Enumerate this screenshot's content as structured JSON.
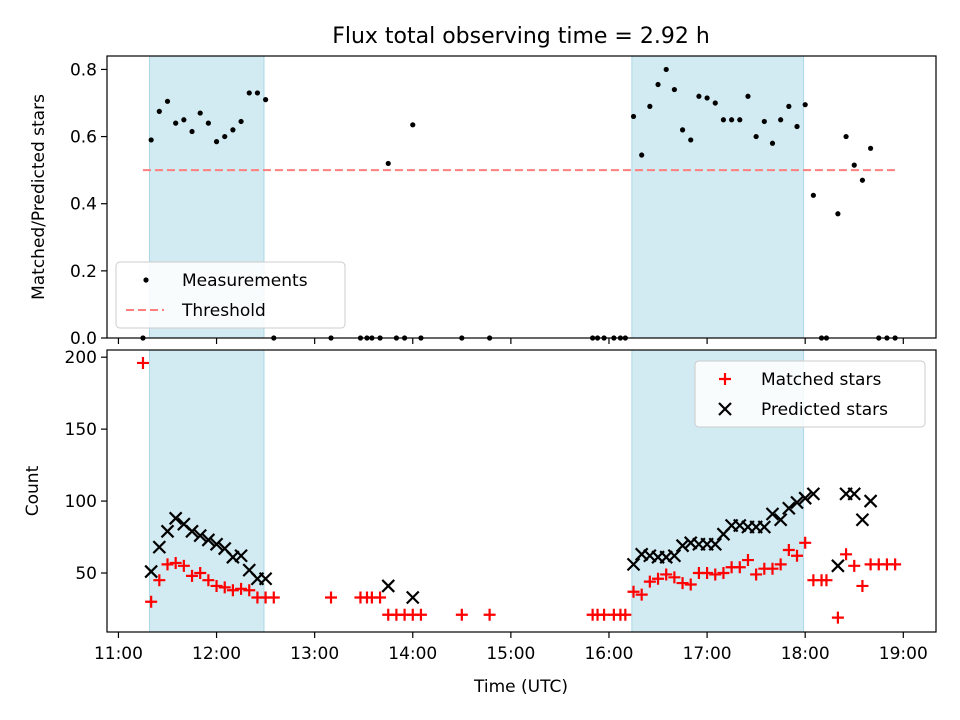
{
  "chart_data": {
    "type": "scatter",
    "title": "Flux total observing time = 2.92 h",
    "xlabel": "Time (UTC)",
    "x_ticks": [
      "11:00",
      "12:00",
      "13:00",
      "14:00",
      "15:00",
      "16:00",
      "17:00",
      "18:00",
      "19:00"
    ],
    "xlim": [
      "10:53",
      "19:20"
    ],
    "colors": {
      "measurement": "#000000",
      "threshold": "#ff7f7f",
      "matched": "#ff0000",
      "predicted": "#000000",
      "span": "#add8e6"
    },
    "observing_spans": [
      {
        "start": "11:19",
        "end": "12:29"
      },
      {
        "start": "16:14",
        "end": "17:59"
      }
    ],
    "panels": [
      {
        "ylabel": "Matched/Predicted stars",
        "ylim": [
          0,
          0.84
        ],
        "yticks": [
          "0.0",
          "0.2",
          "0.4",
          "0.6",
          "0.8"
        ],
        "legend_position": "lower-left",
        "series": [
          {
            "name": "Measurements",
            "kind": "dot",
            "points": [
              [
                "11:15",
                0.0
              ],
              [
                "11:20",
                0.59
              ],
              [
                "11:25",
                0.675
              ],
              [
                "11:30",
                0.705
              ],
              [
                "11:35",
                0.64
              ],
              [
                "11:40",
                0.65
              ],
              [
                "11:45",
                0.615
              ],
              [
                "11:50",
                0.67
              ],
              [
                "11:55",
                0.64
              ],
              [
                "12:00",
                0.585
              ],
              [
                "12:05",
                0.6
              ],
              [
                "12:10",
                0.62
              ],
              [
                "12:15",
                0.645
              ],
              [
                "12:20",
                0.73
              ],
              [
                "12:25",
                0.73
              ],
              [
                "12:30",
                0.71
              ],
              [
                "12:35",
                0.0
              ],
              [
                "13:10",
                0.0
              ],
              [
                "13:28",
                0.0
              ],
              [
                "13:32",
                0.0
              ],
              [
                "13:35",
                0.0
              ],
              [
                "13:40",
                0.0
              ],
              [
                "13:45",
                0.52
              ],
              [
                "13:50",
                0.0
              ],
              [
                "13:55",
                0.0
              ],
              [
                "14:00",
                0.635
              ],
              [
                "14:05",
                0.0
              ],
              [
                "14:30",
                0.0
              ],
              [
                "14:47",
                0.0
              ],
              [
                "15:50",
                0.0
              ],
              [
                "15:53",
                0.0
              ],
              [
                "15:57",
                0.0
              ],
              [
                "16:03",
                0.0
              ],
              [
                "16:07",
                0.0
              ],
              [
                "16:10",
                0.0
              ],
              [
                "16:15",
                0.66
              ],
              [
                "16:20",
                0.545
              ],
              [
                "16:25",
                0.69
              ],
              [
                "16:30",
                0.755
              ],
              [
                "16:35",
                0.8
              ],
              [
                "16:40",
                0.74
              ],
              [
                "16:45",
                0.62
              ],
              [
                "16:50",
                0.59
              ],
              [
                "16:55",
                0.72
              ],
              [
                "17:00",
                0.715
              ],
              [
                "17:05",
                0.7
              ],
              [
                "17:10",
                0.65
              ],
              [
                "17:15",
                0.65
              ],
              [
                "17:20",
                0.65
              ],
              [
                "17:25",
                0.72
              ],
              [
                "17:30",
                0.6
              ],
              [
                "17:35",
                0.645
              ],
              [
                "17:40",
                0.58
              ],
              [
                "17:45",
                0.65
              ],
              [
                "17:50",
                0.69
              ],
              [
                "17:55",
                0.63
              ],
              [
                "18:00",
                0.695
              ],
              [
                "18:05",
                0.425
              ],
              [
                "18:10",
                0.0
              ],
              [
                "18:13",
                0.0
              ],
              [
                "18:20",
                0.37
              ],
              [
                "18:25",
                0.6
              ],
              [
                "18:30",
                0.515
              ],
              [
                "18:35",
                0.47
              ],
              [
                "18:40",
                0.565
              ],
              [
                "18:45",
                0.0
              ],
              [
                "18:50",
                0.0
              ],
              [
                "18:55",
                0.0
              ]
            ]
          },
          {
            "name": "Threshold",
            "kind": "dashed-line",
            "points": [
              [
                "11:15",
                0.5
              ],
              [
                "18:55",
                0.5
              ]
            ]
          }
        ]
      },
      {
        "ylabel": "Count",
        "ylim": [
          9,
          205
        ],
        "yticks": [
          "50",
          "100",
          "150",
          "200"
        ],
        "legend_position": "upper-right",
        "series": [
          {
            "name": "Matched stars",
            "kind": "plus",
            "points": [
              [
                "11:15",
                196
              ],
              [
                "11:20",
                30
              ],
              [
                "11:25",
                45
              ],
              [
                "11:30",
                56
              ],
              [
                "11:35",
                57
              ],
              [
                "11:40",
                55
              ],
              [
                "11:45",
                48
              ],
              [
                "11:50",
                50
              ],
              [
                "11:55",
                45
              ],
              [
                "12:00",
                41
              ],
              [
                "12:05",
                40
              ],
              [
                "12:10",
                38
              ],
              [
                "12:15",
                39
              ],
              [
                "12:20",
                38
              ],
              [
                "12:25",
                33
              ],
              [
                "12:30",
                33
              ],
              [
                "12:35",
                33
              ],
              [
                "13:10",
                33
              ],
              [
                "13:28",
                33
              ],
              [
                "13:32",
                33
              ],
              [
                "13:35",
                33
              ],
              [
                "13:40",
                33
              ],
              [
                "13:45",
                21
              ],
              [
                "13:50",
                21
              ],
              [
                "13:55",
                21
              ],
              [
                "14:00",
                21
              ],
              [
                "14:05",
                21
              ],
              [
                "14:30",
                21
              ],
              [
                "14:47",
                21
              ],
              [
                "15:50",
                21
              ],
              [
                "15:53",
                21
              ],
              [
                "15:57",
                21
              ],
              [
                "16:03",
                21
              ],
              [
                "16:07",
                21
              ],
              [
                "16:10",
                21
              ],
              [
                "16:15",
                37
              ],
              [
                "16:20",
                35
              ],
              [
                "16:25",
                44
              ],
              [
                "16:30",
                46
              ],
              [
                "16:35",
                49
              ],
              [
                "16:40",
                47
              ],
              [
                "16:45",
                43
              ],
              [
                "16:50",
                42
              ],
              [
                "16:55",
                50
              ],
              [
                "17:00",
                50
              ],
              [
                "17:05",
                49
              ],
              [
                "17:10",
                50
              ],
              [
                "17:15",
                54
              ],
              [
                "17:20",
                54
              ],
              [
                "17:25",
                59
              ],
              [
                "17:30",
                49
              ],
              [
                "17:35",
                53
              ],
              [
                "17:40",
                53
              ],
              [
                "17:45",
                56
              ],
              [
                "17:50",
                66
              ],
              [
                "17:55",
                62
              ],
              [
                "18:00",
                71
              ],
              [
                "18:05",
                45
              ],
              [
                "18:10",
                45
              ],
              [
                "18:13",
                45
              ],
              [
                "18:20",
                19
              ],
              [
                "18:25",
                63
              ],
              [
                "18:30",
                55
              ],
              [
                "18:35",
                41
              ],
              [
                "18:40",
                56
              ],
              [
                "18:45",
                56
              ],
              [
                "18:50",
                56
              ],
              [
                "18:55",
                56
              ]
            ]
          },
          {
            "name": "Predicted stars",
            "kind": "x",
            "points": [
              [
                "11:20",
                51
              ],
              [
                "11:25",
                68
              ],
              [
                "11:30",
                79
              ],
              [
                "11:35",
                88
              ],
              [
                "11:40",
                84
              ],
              [
                "11:45",
                79
              ],
              [
                "11:50",
                76
              ],
              [
                "11:55",
                73
              ],
              [
                "12:00",
                70
              ],
              [
                "12:05",
                67
              ],
              [
                "12:10",
                61
              ],
              [
                "12:15",
                62
              ],
              [
                "12:20",
                52
              ],
              [
                "12:25",
                46
              ],
              [
                "12:30",
                46
              ],
              [
                "13:45",
                41
              ],
              [
                "14:00",
                33
              ],
              [
                "16:15",
                56
              ],
              [
                "16:20",
                63
              ],
              [
                "16:25",
                62
              ],
              [
                "16:30",
                61
              ],
              [
                "16:35",
                61
              ],
              [
                "16:40",
                62
              ],
              [
                "16:45",
                69
              ],
              [
                "16:50",
                71
              ],
              [
                "16:55",
                70
              ],
              [
                "17:00",
                70
              ],
              [
                "17:05",
                70
              ],
              [
                "17:10",
                77
              ],
              [
                "17:15",
                83
              ],
              [
                "17:20",
                83
              ],
              [
                "17:25",
                82
              ],
              [
                "17:30",
                82
              ],
              [
                "17:35",
                82
              ],
              [
                "17:40",
                91
              ],
              [
                "17:45",
                87
              ],
              [
                "17:50",
                95
              ],
              [
                "17:55",
                99
              ],
              [
                "18:00",
                102
              ],
              [
                "18:05",
                105
              ],
              [
                "18:20",
                55
              ],
              [
                "18:25",
                105
              ],
              [
                "18:30",
                105
              ],
              [
                "18:35",
                87
              ],
              [
                "18:40",
                100
              ]
            ]
          }
        ]
      }
    ]
  }
}
